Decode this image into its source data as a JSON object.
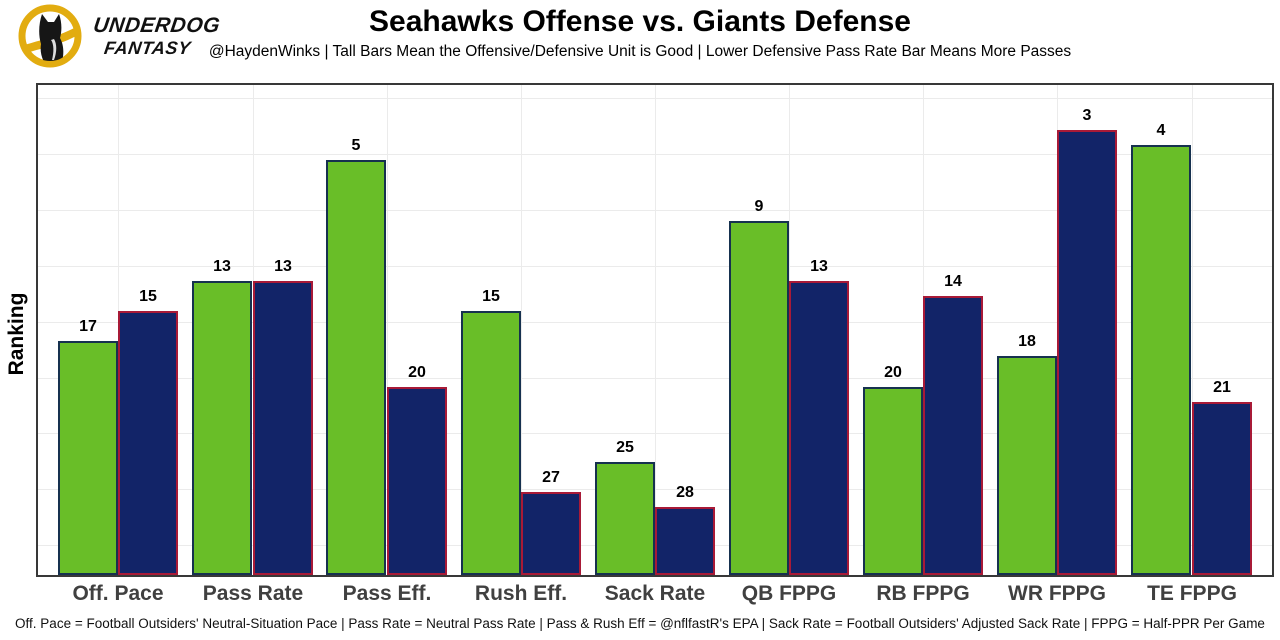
{
  "logo": {
    "line1": "UNDERDOG",
    "line2": "FANTASY",
    "badge_gold": "#E2AC10",
    "dog_black": "#161616"
  },
  "header": {
    "title": "Seahawks Offense vs. Giants Defense",
    "subtitle": "@HaydenWinks | Tall Bars Mean the Offensive/Defensive Unit is Good | Lower Defensive Pass Rate Bar Means More Passes"
  },
  "chart_data": {
    "type": "bar",
    "title": "Seahawks Offense vs. Giants Defense",
    "ylabel": "Ranking",
    "xlabel": "",
    "categories": [
      "Off. Pace",
      "Pass Rate",
      "Pass Eff.",
      "Rush Eff.",
      "Sack Rate",
      "QB FPPG",
      "RB FPPG",
      "WR FPPG",
      "TE FPPG"
    ],
    "series": [
      {
        "name": "Seahawks Offense",
        "values": [
          17,
          13,
          5,
          15,
          25,
          9,
          20,
          18,
          4
        ],
        "fill": "#69be28",
        "border": "#16314f"
      },
      {
        "name": "Giants Defense",
        "values": [
          15,
          13,
          20,
          27,
          28,
          13,
          14,
          3,
          21
        ],
        "fill": "#122468",
        "border": "#a81a37"
      }
    ],
    "value_axis": {
      "ylim": [
        0,
        32.5
      ],
      "inverted_ranks": true,
      "tick_labels_shown": false
    },
    "grid": true,
    "legend": "none",
    "bar_labels": true
  },
  "footer": {
    "note": "Off. Pace = Football Outsiders' Neutral-Situation Pace | Pass Rate = Neutral Pass Rate | Pass & Rush Eff = @nflfastR's EPA | Sack Rate = Football Outsiders' Adjusted Sack Rate | FPPG = Half-PPR Per Game"
  }
}
